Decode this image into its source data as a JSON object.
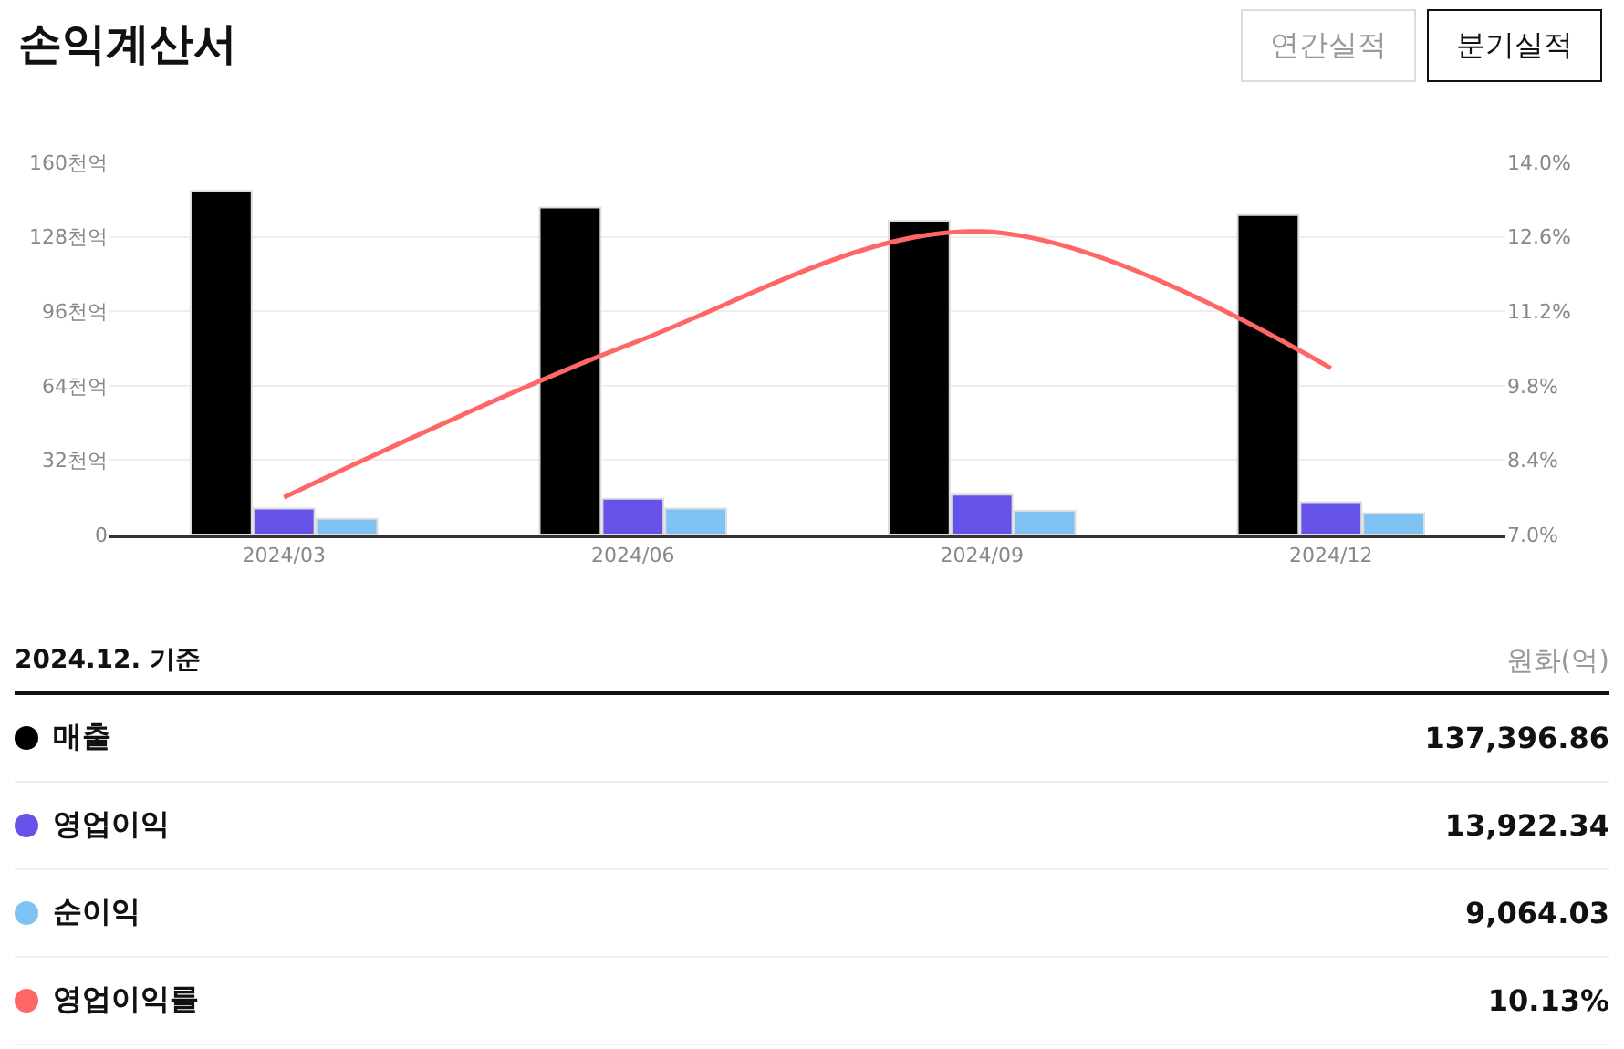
{
  "chart_data": {
    "type": "bar",
    "title": "손익계산서",
    "annotations": [
      "연간실적",
      "분기실적",
      "2024.12. 기준",
      "원화(억)",
      "137,396.86",
      "13,922.34",
      "9,064.03",
      "10.13%"
    ],
    "categories": [
      "2024/03",
      "2024/06",
      "2024/09",
      "2024/12"
    ],
    "series": [
      {
        "name": "매출",
        "color": "#000000",
        "values": [
          147.7,
          140.6,
          134.9,
          137.4
        ]
      },
      {
        "name": "영업이익",
        "color": "#6452e9",
        "values": [
          11.2,
          15.4,
          17.2,
          13.9
        ]
      },
      {
        "name": "순이익",
        "color": "#7fc3f5",
        "values": [
          6.8,
          11.2,
          10.2,
          9.1
        ]
      },
      {
        "name": "영업이익률",
        "type": "line",
        "axis": "y2",
        "color": "#ff6666",
        "values": [
          7.7,
          10.6,
          12.7,
          10.13
        ]
      }
    ],
    "ylim": [
      0,
      160
    ],
    "yticks": [
      0,
      {
        "value": 32,
        "label": "32천억"
      },
      {
        "value": 64,
        "label": "64천억"
      },
      {
        "value": 96,
        "label": "96천억"
      },
      {
        "value": 128,
        "label": "128천억"
      },
      {
        "value": 160,
        "label": "160천억"
      }
    ],
    "y2lim": [
      7.0,
      14.0
    ],
    "y2ticks": [
      {
        "value": 7,
        "label": "7.0%"
      },
      {
        "value": 8.4,
        "label": "8.4%"
      },
      {
        "value": 9.8,
        "label": "9.8%"
      },
      {
        "value": 11.2,
        "label": "11.2%"
      },
      {
        "value": 12.6,
        "label": "12.6%"
      },
      {
        "value": 14,
        "label": "14.0%"
      }
    ],
    "grid": "y",
    "legend": "bottom",
    "marker": "none",
    "line_style": "solid"
  }
}
